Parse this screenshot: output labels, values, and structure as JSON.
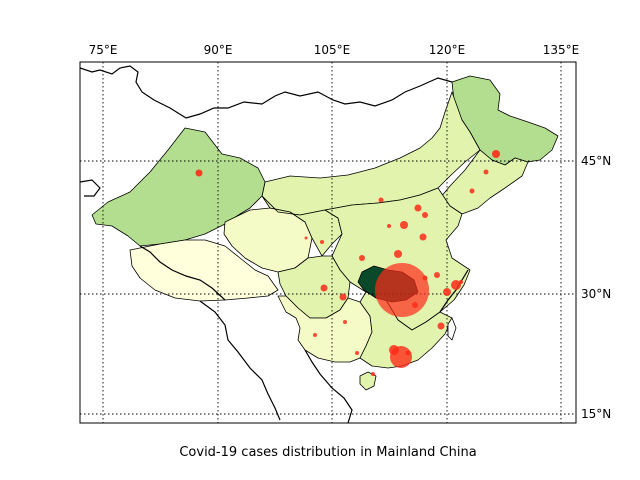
{
  "caption": "Covid-19 cases distribution in Mainland China",
  "longitude_labels": [
    "75°E",
    "90°E",
    "105°E",
    "120°E",
    "135°E"
  ],
  "latitude_labels": [
    "45°N",
    "30°N",
    "15°N"
  ],
  "colors": {
    "case_marker": "#ff2a1a",
    "hubei_fill": "#0a4a2a",
    "fill_high": "#b3de8f",
    "fill_mid": "#e1f3ad",
    "fill_low": "#f5fbc6",
    "fill_lowest": "#ffffdc",
    "border": "#000000"
  }
}
